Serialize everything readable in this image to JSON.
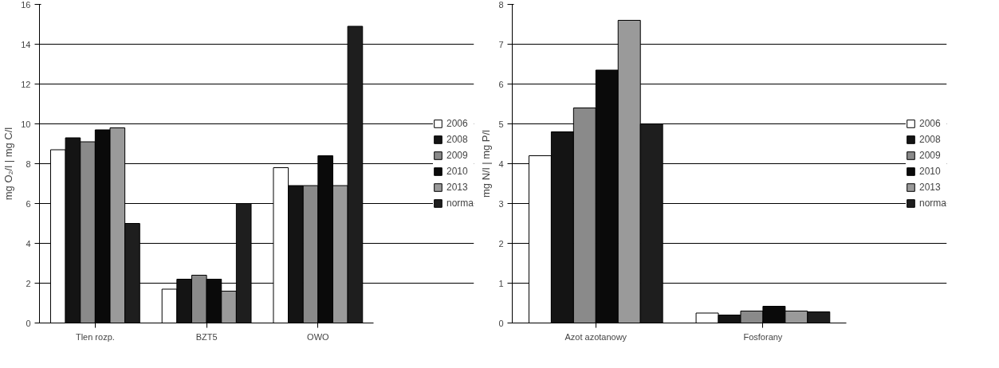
{
  "chart_data": [
    {
      "type": "bar",
      "ylabel": "mg O₂/l | mg C/l",
      "categories": [
        "Tlen rozp.",
        "BZT5",
        "OWO"
      ],
      "ylim": [
        0,
        16
      ],
      "yticks": [
        0,
        2,
        4,
        6,
        8,
        10,
        12,
        14,
        16
      ],
      "grid": "y",
      "legend": "right",
      "series": [
        {
          "name": "2006",
          "color": "#ffffff",
          "values": [
            8.7,
            1.7,
            7.8
          ]
        },
        {
          "name": "2008",
          "color": "#141414",
          "values": [
            9.3,
            2.2,
            6.9
          ]
        },
        {
          "name": "2009",
          "color": "#8a8a8a",
          "values": [
            9.1,
            2.4,
            6.9
          ]
        },
        {
          "name": "2010",
          "color": "#0a0a0a",
          "values": [
            9.7,
            2.2,
            8.4
          ]
        },
        {
          "name": "2013",
          "color": "#9a9a9a",
          "values": [
            9.8,
            1.6,
            6.9
          ]
        },
        {
          "name": "norma",
          "color": "#1e1e1e",
          "values": [
            5,
            6,
            14.9
          ]
        }
      ]
    },
    {
      "type": "bar",
      "ylabel": "mg N/l | mg P/l",
      "categories": [
        "Azot azotanowy",
        "Fosforany"
      ],
      "ylim": [
        0,
        8
      ],
      "yticks": [
        0,
        1,
        2,
        3,
        4,
        5,
        6,
        7,
        8
      ],
      "grid": "y",
      "legend": "right",
      "series": [
        {
          "name": "2006",
          "color": "#ffffff",
          "values": [
            4.2,
            0.25
          ]
        },
        {
          "name": "2008",
          "color": "#141414",
          "values": [
            4.8,
            0.2
          ]
        },
        {
          "name": "2009",
          "color": "#8a8a8a",
          "values": [
            5.4,
            0.3
          ]
        },
        {
          "name": "2010",
          "color": "#0a0a0a",
          "values": [
            6.35,
            0.42
          ]
        },
        {
          "name": "2013",
          "color": "#9a9a9a",
          "values": [
            7.6,
            0.3
          ]
        },
        {
          "name": "norma",
          "color": "#1e1e1e",
          "values": [
            5,
            0.28
          ]
        }
      ]
    }
  ]
}
